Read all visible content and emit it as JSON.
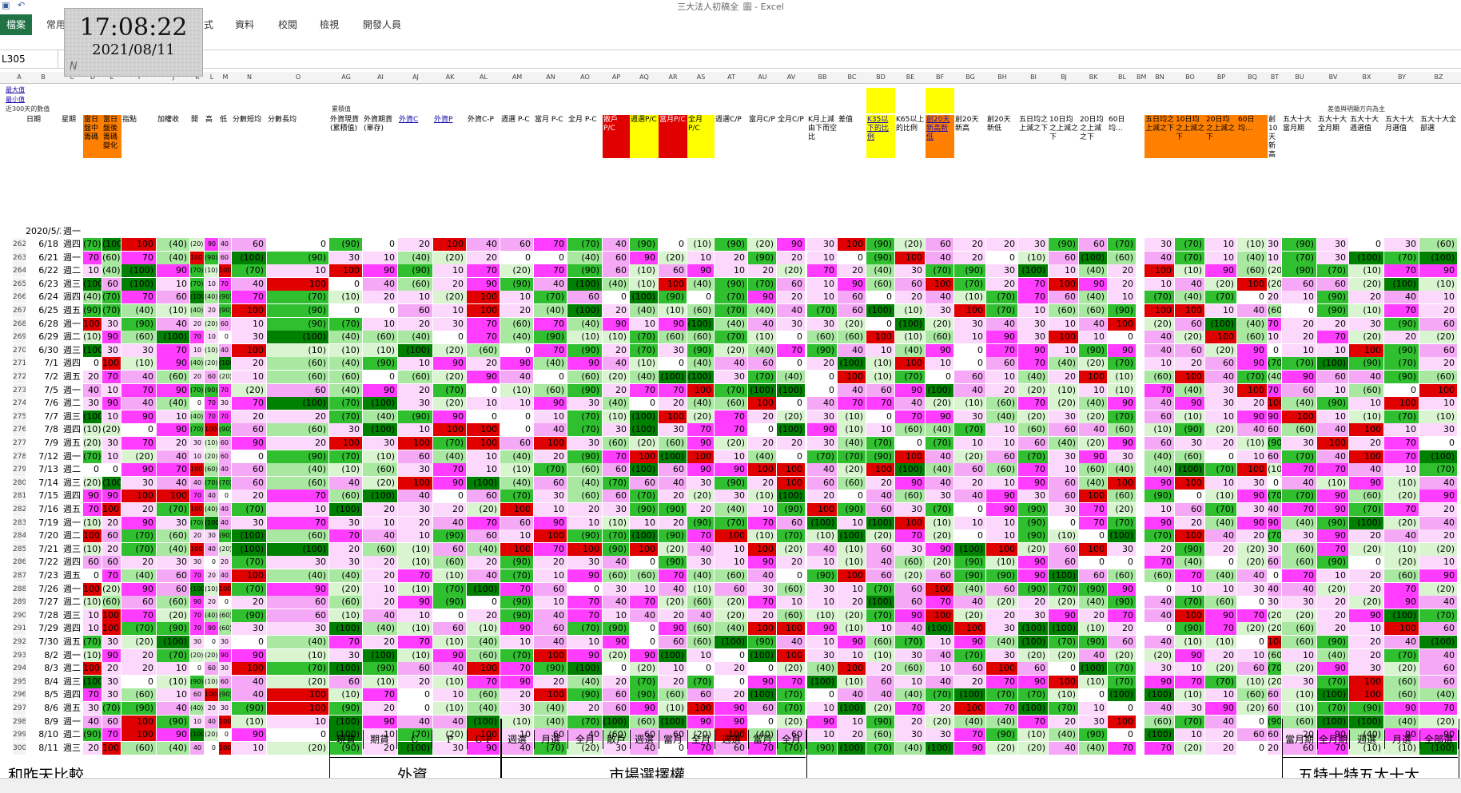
{
  "window": {
    "title": "三大法人初稿全_圖 - Excel"
  },
  "ribbon": {
    "file": "檔案",
    "tabs": [
      "常用",
      "式",
      "資料",
      "校閱",
      "檢視",
      "開發人員"
    ]
  },
  "clock": {
    "time": "17:08:22",
    "date": "2021/08/11",
    "mark": "N"
  },
  "namebox": "L305",
  "top_labels": {
    "r1": "最大值",
    "r2": "最小值",
    "r3": "近300天的數值",
    "r3b": "累積值",
    "r3c": "差值與明顯方向為主"
  },
  "headers": {
    "date": "日期",
    "week": "星期",
    "d": "當日盤中籌碼",
    "e": "當日盤後籌碼變化",
    "i": "指點",
    "j": "加權收",
    "k": "開",
    "l": "高",
    "m": "低",
    "n": "分數短均",
    "o": "分數長均",
    "ag": "外資現貨(累積值)",
    "ai": "外資期貨(單存)",
    "aj": "外資C",
    "ak": "外資P",
    "al": "外資C-P",
    "am": "週選 P-C",
    "an": "當月 P-C",
    "ao": "全月 P-C",
    "ap": "散戶P/C",
    "aq": "週選P/C",
    "ar": "當月P/C",
    "as": "全月P/C",
    "at": "週選C/P",
    "au": "當月C/P",
    "av": "全月C/P",
    "bb": "K月上減由下而空比",
    "bc": "差值",
    "bd": "K35以下的比例",
    "be": "K65以上的比例",
    "bf": "創20天新高新低",
    "bg": "創20天新高",
    "bh": "創20天新低",
    "bi": "五日均之上減之下",
    "bj": "10日均之上減之下",
    "bk": "20日均之上減之下",
    "bl": "60日均...",
    "bn": "五日均之上減之下",
    "bo": "10日均之上減之下",
    "bp": "20日均之上減之下",
    "bq": "60日均...",
    "bt": "創10天新高量減新低量家數",
    "bu": "五大十大當月期",
    "bv": "五大十大全月期",
    "bx": "五大十大週選值",
    "by": "五大十大月選值",
    "bz": "五大十大全部選"
  },
  "first_row": {
    "date": "2020/5/25",
    "week": "週一"
  },
  "rows": [
    {
      "n": "262",
      "date": "6/18",
      "week": "週四"
    },
    {
      "n": "263",
      "date": "6/21",
      "week": "週一"
    },
    {
      "n": "264",
      "date": "6/22",
      "week": "週二"
    },
    {
      "n": "265",
      "date": "6/23",
      "week": "週三"
    },
    {
      "n": "266",
      "date": "6/24",
      "week": "週四"
    },
    {
      "n": "267",
      "date": "6/25",
      "week": "週五"
    },
    {
      "n": "268",
      "date": "6/28",
      "week": "週一"
    },
    {
      "n": "269",
      "date": "6/29",
      "week": "週二"
    },
    {
      "n": "270",
      "date": "6/30",
      "week": "週三"
    },
    {
      "n": "271",
      "date": "7/1",
      "week": "週四"
    },
    {
      "n": "272",
      "date": "7/2",
      "week": "週五"
    },
    {
      "n": "273",
      "date": "7/5",
      "week": "週一"
    },
    {
      "n": "274",
      "date": "7/6",
      "week": "週二"
    },
    {
      "n": "275",
      "date": "7/7",
      "week": "週三"
    },
    {
      "n": "276",
      "date": "7/8",
      "week": "週四"
    },
    {
      "n": "277",
      "date": "7/9",
      "week": "週五"
    },
    {
      "n": "278",
      "date": "7/12",
      "week": "週一"
    },
    {
      "n": "279",
      "date": "7/13",
      "week": "週二"
    },
    {
      "n": "280",
      "date": "7/14",
      "week": "週三"
    },
    {
      "n": "281",
      "date": "7/15",
      "week": "週四"
    },
    {
      "n": "282",
      "date": "7/16",
      "week": "週五"
    },
    {
      "n": "283",
      "date": "7/19",
      "week": "週一"
    },
    {
      "n": "284",
      "date": "7/20",
      "week": "週二"
    },
    {
      "n": "285",
      "date": "7/21",
      "week": "週三"
    },
    {
      "n": "286",
      "date": "7/22",
      "week": "週四"
    },
    {
      "n": "287",
      "date": "7/23",
      "week": "週五"
    },
    {
      "n": "288",
      "date": "7/26",
      "week": "週一"
    },
    {
      "n": "289",
      "date": "7/27",
      "week": "週二"
    },
    {
      "n": "290",
      "date": "7/28",
      "week": "週三"
    },
    {
      "n": "291",
      "date": "7/29",
      "week": "週四"
    },
    {
      "n": "292",
      "date": "7/30",
      "week": "週五"
    },
    {
      "n": "293",
      "date": "8/2",
      "week": "週一"
    },
    {
      "n": "294",
      "date": "8/3",
      "week": "週二"
    },
    {
      "n": "295",
      "date": "8/4",
      "week": "週三"
    },
    {
      "n": "296",
      "date": "8/5",
      "week": "週四"
    },
    {
      "n": "297",
      "date": "8/6",
      "week": "週五"
    },
    {
      "n": "298",
      "date": "8/9",
      "week": "週一"
    },
    {
      "n": "299",
      "date": "8/10",
      "week": "週二"
    },
    {
      "n": "300",
      "date": "8/11",
      "week": "週三"
    }
  ],
  "footer": {
    "compare": "和昨天比較",
    "foreign": "外資",
    "market": "市場選擇權",
    "five_ten": "五特十特五大十大",
    "sub_foreign": [
      "現貨",
      "期貨",
      "C",
      "P",
      "C-P"
    ],
    "sub_market": [
      "週選",
      "月選",
      "全月",
      "散戶",
      "週選",
      "當月",
      "全月",
      "週選",
      "當月",
      "全月"
    ],
    "sub_five": [
      "當月期",
      "全月期",
      "週選",
      "月選",
      "全部選"
    ]
  },
  "colors": {
    "dark_green": "#008000",
    "green": "#2fbf2f",
    "light_green": "#a8e8a0",
    "pale_green": "#d8f5d0",
    "red": "#e00000",
    "magenta": "#ff3cff",
    "pink": "#f5a8f5",
    "light_pink": "#fcd8fc",
    "white": "#ffffff",
    "orange": "#ff7f00",
    "yellow": "#ffff00",
    "excel_green": "#217346"
  }
}
